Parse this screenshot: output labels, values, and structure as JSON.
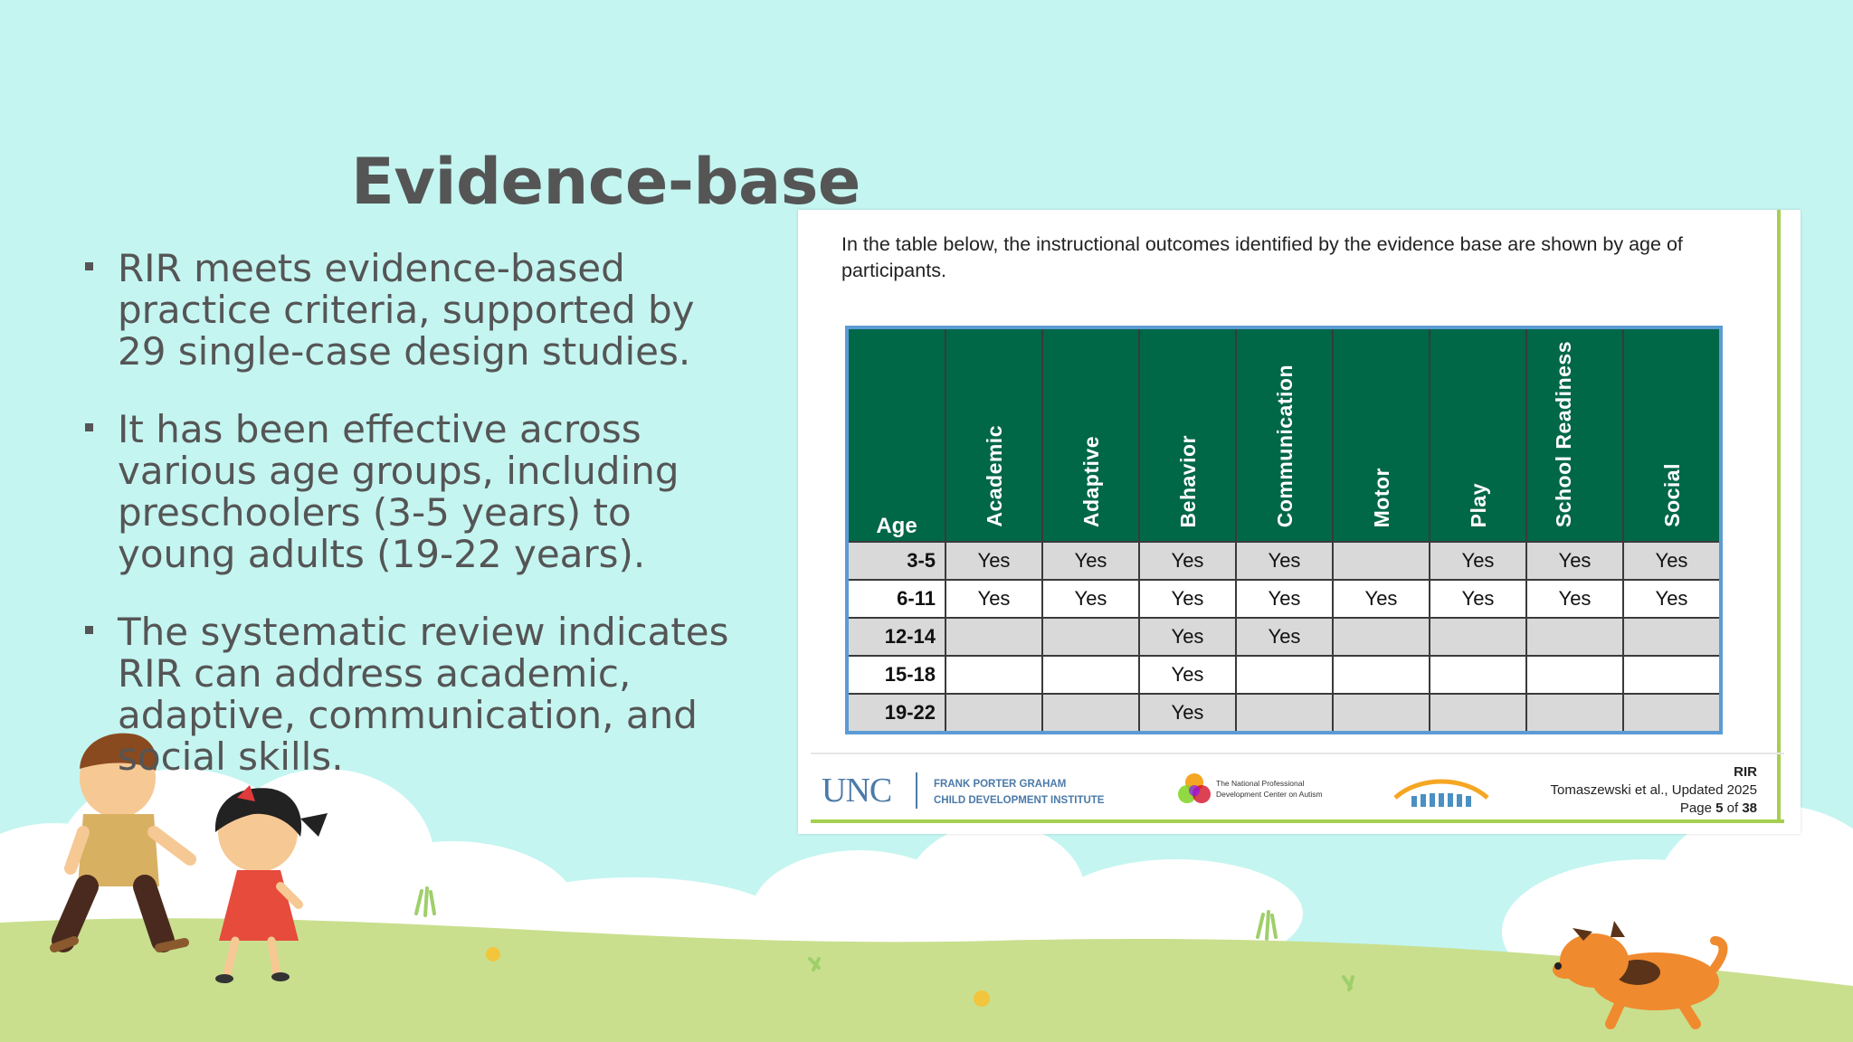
{
  "slide": {
    "title": "Evidence-base",
    "bullets": [
      "RIR meets evidence-based practice criteria, supported by 29 single-case design studies.",
      "It has been effective across various age groups, including preschoolers (3-5 years) to young adults (19-22 years).",
      "The systematic review indicates RIR can address academic, adaptive, communication, and social skills."
    ]
  },
  "document": {
    "intro": "In the table below, the instructional outcomes identified by the evidence base are shown by age of participants.",
    "table": {
      "columns": [
        "Age",
        "Academic",
        "Adaptive",
        "Behavior",
        "Communication",
        "Motor",
        "Play",
        "School Readiness",
        "Social"
      ],
      "rows": [
        {
          "age": "3-5",
          "cells": [
            "Yes",
            "Yes",
            "Yes",
            "Yes",
            "",
            "Yes",
            "Yes",
            "Yes"
          ]
        },
        {
          "age": "6-11",
          "cells": [
            "Yes",
            "Yes",
            "Yes",
            "Yes",
            "Yes",
            "Yes",
            "Yes",
            "Yes"
          ]
        },
        {
          "age": "12-14",
          "cells": [
            "",
            "",
            "Yes",
            "Yes",
            "",
            "",
            "",
            ""
          ]
        },
        {
          "age": "15-18",
          "cells": [
            "",
            "",
            "Yes",
            "",
            "",
            "",
            "",
            ""
          ]
        },
        {
          "age": "19-22",
          "cells": [
            "",
            "",
            "Yes",
            "",
            "",
            "",
            "",
            ""
          ]
        }
      ]
    },
    "footer": {
      "unc": "UNC",
      "fpg_line1": "FRANK PORTER GRAHAM",
      "fpg_line2": "CHILD DEVELOPMENT INSTITUTE",
      "npdc_line1": "The National Professional",
      "npdc_line2": "Development Center on Autism",
      "meta_line1": "RIR",
      "meta_line2": "Tomaszewski et al., Updated 2025",
      "page_prefix": "Page",
      "page_num": "5",
      "page_of": "of",
      "page_total": "38"
    }
  },
  "colors": {
    "background": "#c4f5f1",
    "header_green": "#006747",
    "table_border_blue": "#5b9bd5",
    "doc_border_green": "#a5cf4f",
    "grass": "#c9df8e"
  },
  "icons": [
    "unc-logo",
    "npdc-logo",
    "afirm-logo",
    "boy-illustration",
    "girl-illustration",
    "dog-illustration",
    "cloud-illustration"
  ]
}
